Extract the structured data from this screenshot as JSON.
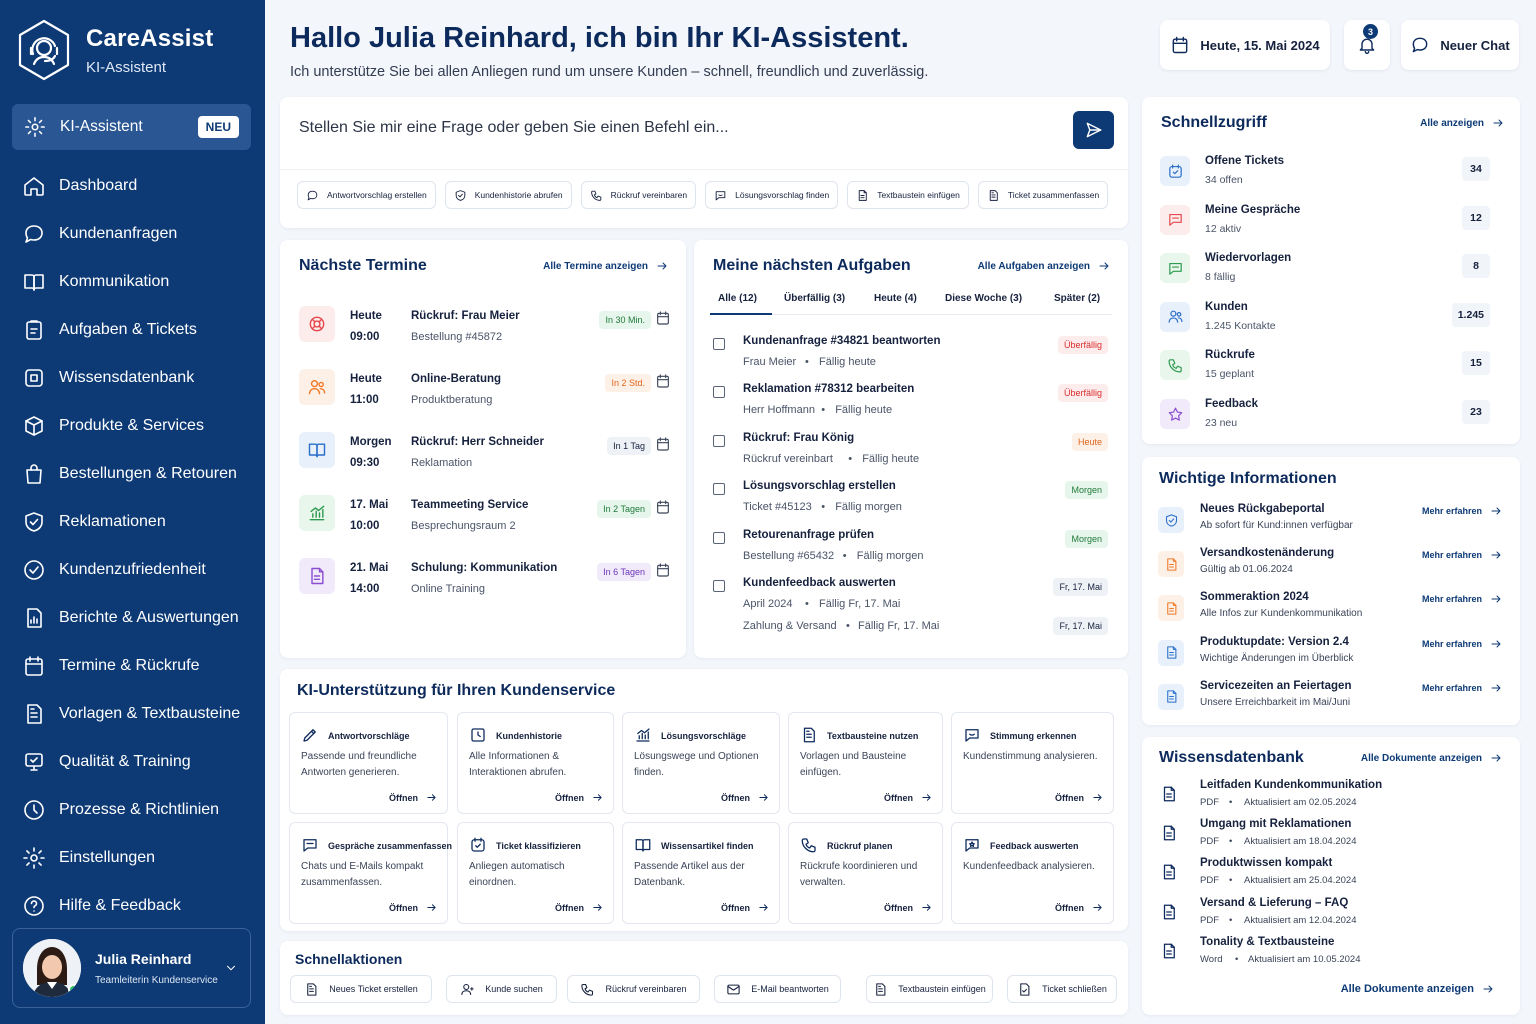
{
  "brand": {
    "name": "CareAssist",
    "subtitle": "KI-Assistent"
  },
  "sidebar": {
    "active": {
      "label": "KI-Assistent",
      "badge": "NEU"
    },
    "items": [
      {
        "label": "Dashboard",
        "icon": "home-icon"
      },
      {
        "label": "Kundenanfragen",
        "icon": "chat-icon"
      },
      {
        "label": "Kommunikation",
        "icon": "book-open-icon"
      },
      {
        "label": "Aufgaben & Tickets",
        "icon": "clipboard-icon"
      },
      {
        "label": "Wissensdatenbank",
        "icon": "database-icon"
      },
      {
        "label": "Produkte & Services",
        "icon": "products-icon"
      },
      {
        "label": "Bestellungen & Retouren",
        "icon": "shopping-bag-icon"
      },
      {
        "label": "Reklamationen",
        "icon": "shield-check-icon"
      },
      {
        "label": "Kundenzufriedenheit",
        "icon": "badge-check-icon"
      },
      {
        "label": "Berichte & Auswertungen",
        "icon": "report-icon"
      },
      {
        "label": "Termine & Rückrufe",
        "icon": "calendar-icon"
      },
      {
        "label": "Vorlagen & Textbausteine",
        "icon": "template-icon"
      },
      {
        "label": "Qualität & Training",
        "icon": "training-icon"
      },
      {
        "label": "Prozesse & Richtlinien",
        "icon": "process-icon"
      },
      {
        "label": "Einstellungen",
        "icon": "gear-icon"
      },
      {
        "label": "Hilfe & Feedback",
        "icon": "help-icon"
      }
    ],
    "user": {
      "name": "Julia Reinhard",
      "role": "Teamleiterin Kundenservice"
    }
  },
  "header": {
    "title": "Hallo Julia Reinhard, ich bin Ihr KI-Assistent.",
    "subtitle": "Ich unterstütze Sie bei allen Anliegen rund um unsere Kunden – schnell, freundlich und zuverlässig.",
    "date": "Heute, 15. Mai 2024",
    "notifications": "3",
    "new_chat": "Neuer Chat"
  },
  "chat": {
    "placeholder": "Stellen Sie mir eine Frage oder geben Sie einen Befehl ein...",
    "chips": [
      "Antwortvorschlag erstellen",
      "Kundenhistorie abrufen",
      "Rückruf vereinbaren",
      "Lösungsvorschlag finden",
      "Textbaustein einfügen",
      "Ticket zusammenfassen"
    ]
  },
  "termine": {
    "title": "Nächste Termine",
    "link": "Alle Termine anzeigen",
    "items": [
      {
        "day": "Heute",
        "time": "09:00",
        "title": "Rückruf: Frau Meier",
        "sub": "Bestellung #45872",
        "badge": "In 30 Min.",
        "color": "#e5484d",
        "bg": "#fdecec",
        "badge_color": "#1f7a3a",
        "badge_bg": "#e7f6ec",
        "icon": "lifebuoy-icon"
      },
      {
        "day": "Heute",
        "time": "11:00",
        "title": "Online-Beratung",
        "sub": "Produktberatung",
        "badge": "In 2 Std.",
        "color": "#f07a2a",
        "bg": "#fdf0e6",
        "badge_color": "#e0661d",
        "badge_bg": "#fdf0e6",
        "icon": "users-icon"
      },
      {
        "day": "Morgen",
        "time": "09:30",
        "title": "Rückruf: Herr Schneider",
        "sub": "Reklamation",
        "badge": "In 1 Tag",
        "color": "#2a6fc9",
        "bg": "#e8f0fb",
        "badge_color": "#16213e",
        "badge_bg": "#eef1f6",
        "icon": "book-icon"
      },
      {
        "day": "17. Mai",
        "time": "10:00",
        "title": "Teammeeting Service",
        "sub": "Besprechungsraum 2",
        "badge": "In 2 Tagen",
        "color": "#2e9a4f",
        "bg": "#e8f6ec",
        "badge_color": "#1f7a3a",
        "badge_bg": "#e7f6ec",
        "icon": "chart-icon"
      },
      {
        "day": "21. Mai",
        "time": "14:00",
        "title": "Schulung: Kommunikation",
        "sub": "Online Training",
        "badge": "In 6 Tagen",
        "color": "#8a4fd1",
        "bg": "#f1eafb",
        "badge_color": "#6b34b8",
        "badge_bg": "#f1eafb",
        "icon": "document-icon"
      }
    ]
  },
  "aufgaben": {
    "title": "Meine nächsten Aufgaben",
    "link": "Alle Aufgaben anzeigen",
    "tabs": [
      "Alle (12)",
      "Überfällig (3)",
      "Heute (4)",
      "Diese Woche (3)",
      "Später (2)"
    ],
    "items": [
      {
        "title": "Kundenanfrage #34821 beantworten",
        "a": "Frau Meier",
        "b": "Fällig heute",
        "badge": "Überfällig",
        "badge_color": "#d92d2d",
        "badge_bg": "#fdecec"
      },
      {
        "title": "Reklamation #78312 bearbeiten",
        "a": "Herr Hoffmann",
        "b": "Fällig heute",
        "badge": "Überfällig",
        "badge_color": "#d92d2d",
        "badge_bg": "#fdecec"
      },
      {
        "title": "Rückruf: Frau König",
        "a": "Rückruf vereinbart",
        "b": "Fällig heute",
        "badge": "Heute",
        "badge_color": "#e0661d",
        "badge_bg": "#fdf0e6"
      },
      {
        "title": "Lösungsvorschlag erstellen",
        "a": "Ticket #45123",
        "b": "Fällig morgen",
        "badge": "Morgen",
        "badge_color": "#1f7a3a",
        "badge_bg": "#e7f6ec"
      },
      {
        "title": "Retourenanfrage prüfen",
        "a": "Bestellung #65432",
        "b": "Fällig morgen",
        "badge": "Morgen",
        "badge_color": "#1f7a3a",
        "badge_bg": "#e7f6ec"
      },
      {
        "title": "Kundenfeedback auswerten",
        "a": "April 2024",
        "b": "Fällig Fr, 17. Mai",
        "badge": "Fr, 17. Mai",
        "badge_color": "#16213e",
        "badge_bg": "#eef1f6"
      }
    ],
    "extra": {
      "a": "Zahlung & Versand",
      "b": "Fällig Fr, 17. Mai",
      "badge": "Fr, 17. Mai"
    }
  },
  "ki": {
    "title": "KI-Unterstützung für Ihren Kundenservice",
    "open": "Öffnen",
    "tiles": [
      {
        "title": "Antwortvorschläge",
        "desc": "Passende und freundliche Antworten generieren.",
        "icon": "pencil-icon"
      },
      {
        "title": "Kundenhistorie",
        "desc": "Alle Informationen & Interaktionen abrufen.",
        "icon": "history-icon"
      },
      {
        "title": "Lösungsvorschläge",
        "desc": "Lösungswege und Optionen finden.",
        "icon": "chart-icon"
      },
      {
        "title": "Textbausteine nutzen",
        "desc": "Vorlagen und Bausteine einfügen.",
        "icon": "template-icon"
      },
      {
        "title": "Stimmung erkennen",
        "desc": "Kundenstimmung analysieren.",
        "icon": "mood-icon"
      },
      {
        "title": "Gespräche zusammenfassen",
        "desc": "Chats und E-Mails kompakt zusammenfassen.",
        "icon": "chat-icon"
      },
      {
        "title": "Ticket klassifizieren",
        "desc": "Anliegen automatisch einordnen.",
        "icon": "ticket-icon"
      },
      {
        "title": "Wissensartikel finden",
        "desc": "Passende Artikel aus der Datenbank.",
        "icon": "book-open-icon"
      },
      {
        "title": "Rückruf planen",
        "desc": "Rückrufe koordinieren und verwalten.",
        "icon": "phone-icon"
      },
      {
        "title": "Feedback auswerten",
        "desc": "Kundenfeedback analysieren.",
        "icon": "feedback-icon"
      }
    ]
  },
  "aktionen": {
    "title": "Schnellaktionen",
    "items": [
      "Neues Ticket erstellen",
      "Kunde suchen",
      "Rückruf vereinbaren",
      "E-Mail beantworten",
      "Textbaustein einfügen",
      "Ticket schließen"
    ]
  },
  "schnellzugriff": {
    "title": "Schnellzugriff",
    "link": "Alle anzeigen",
    "items": [
      {
        "title": "Offene Tickets",
        "sub": "34 offen",
        "count": "34",
        "color": "#2a6fc9",
        "bg": "#e8f0fb",
        "icon": "ticket-icon"
      },
      {
        "title": "Meine Gespräche",
        "sub": "12 aktiv",
        "count": "12",
        "color": "#e5484d",
        "bg": "#fdecec",
        "icon": "chat-icon"
      },
      {
        "title": "Wiedervorlagen",
        "sub": "8 fällig",
        "count": "8",
        "color": "#2e9a4f",
        "bg": "#e8f6ec",
        "icon": "chat-icon"
      },
      {
        "title": "Kunden",
        "sub": "1.245 Kontakte",
        "count": "1.245",
        "color": "#2a6fc9",
        "bg": "#e8f0fb",
        "icon": "users-icon"
      },
      {
        "title": "Rückrufe",
        "sub": "15 geplant",
        "count": "15",
        "color": "#2e9a4f",
        "bg": "#e8f6ec",
        "icon": "phone-icon"
      },
      {
        "title": "Feedback",
        "sub": "23 neu",
        "count": "23",
        "color": "#8a4fd1",
        "bg": "#f1eafb",
        "icon": "star-icon"
      }
    ]
  },
  "info": {
    "title": "Wichtige Informationen",
    "more": "Mehr erfahren",
    "items": [
      {
        "title": "Neues Rückgabeportal",
        "sub": "Ab sofort für Kund:innen verfügbar",
        "color": "#2a6fc9",
        "bg": "#e8f0fb",
        "icon": "shield-check-icon"
      },
      {
        "title": "Versandkostenänderung",
        "sub": "Gültig ab 01.06.2024",
        "color": "#f07a2a",
        "bg": "#fdf0e6",
        "icon": "document-icon"
      },
      {
        "title": "Sommeraktion 2024",
        "sub": "Alle Infos zur Kundenkommunikation",
        "color": "#f07a2a",
        "bg": "#fdf0e6",
        "icon": "document-icon"
      },
      {
        "title": "Produktupdate: Version 2.4",
        "sub": "Wichtige Änderungen im Überblick",
        "color": "#2a6fc9",
        "bg": "#e8f0fb",
        "icon": "document-icon"
      },
      {
        "title": "Servicezeiten an Feiertagen",
        "sub": "Unsere Erreichbarkeit im Mai/Juni",
        "color": "#2a6fc9",
        "bg": "#e8f0fb",
        "icon": "document-icon"
      }
    ]
  },
  "wissen": {
    "title": "Wissensdatenbank",
    "link": "Alle Dokumente anzeigen",
    "bottom_link": "Alle Dokumente anzeigen",
    "items": [
      {
        "title": "Leitfaden Kundenkommunikation",
        "type": "PDF",
        "date": "Aktualisiert am 02.05.2024"
      },
      {
        "title": "Umgang mit Reklamationen",
        "type": "PDF",
        "date": "Aktualisiert am 18.04.2024"
      },
      {
        "title": "Produktwissen kompakt",
        "type": "PDF",
        "date": "Aktualisiert am 25.04.2024"
      },
      {
        "title": "Versand & Lieferung – FAQ",
        "type": "PDF",
        "date": "Aktualisiert am 12.04.2024"
      },
      {
        "title": "Tonality & Textbausteine",
        "type": "Word",
        "date": "Aktualisiert am 10.05.2024"
      }
    ]
  }
}
